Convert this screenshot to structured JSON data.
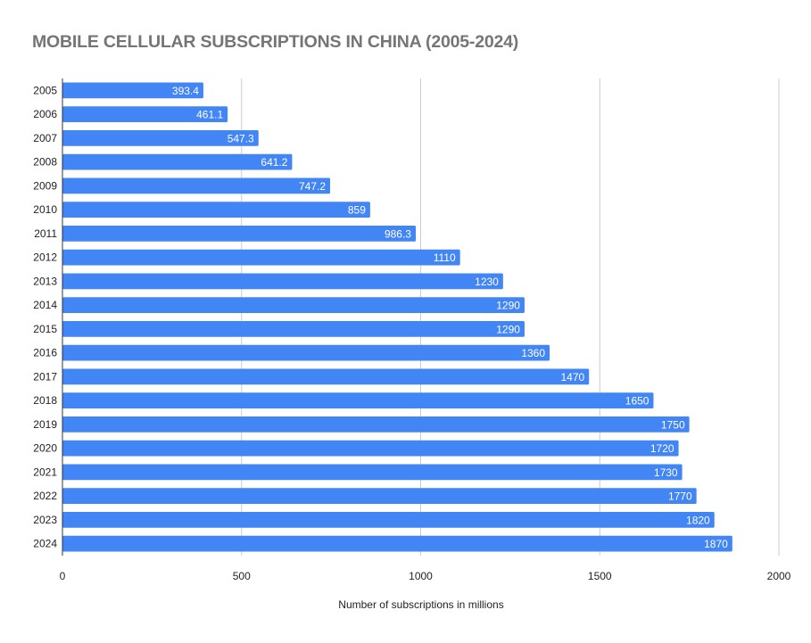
{
  "chart_data": {
    "type": "bar",
    "orientation": "horizontal",
    "title": "MOBILE CELLULAR SUBSCRIPTIONS IN CHINA (2005-2024)",
    "xlabel": "Number of subscriptions in millions",
    "ylabel": "",
    "categories": [
      "2005",
      "2006",
      "2007",
      "2008",
      "2009",
      "2010",
      "2011",
      "2012",
      "2013",
      "2014",
      "2015",
      "2016",
      "2017",
      "2018",
      "2019",
      "2020",
      "2021",
      "2022",
      "2023",
      "2024"
    ],
    "values": [
      393.4,
      461.1,
      547.3,
      641.2,
      747.2,
      859,
      986.3,
      1110,
      1230,
      1290,
      1290,
      1360,
      1470,
      1650,
      1750,
      1720,
      1730,
      1770,
      1820,
      1870
    ],
    "value_labels": [
      "393.4",
      "461.1",
      "547.3",
      "641.2",
      "747.2",
      "859",
      "986.3",
      "1110",
      "1230",
      "1290",
      "1290",
      "1360",
      "1470",
      "1650",
      "1750",
      "1720",
      "1730",
      "1770",
      "1820",
      "1870"
    ],
    "xlim": [
      0,
      2000
    ],
    "xticks": [
      0,
      500,
      1000,
      1500,
      2000
    ],
    "xtick_labels": [
      "0",
      "500",
      "1000",
      "1500",
      "2000"
    ],
    "grid": true,
    "legend": "none",
    "colors": {
      "bar": "#4285f4",
      "grid": "#cccccc",
      "axis": "#333333",
      "title": "#757575",
      "text": "#222222",
      "bar_label": "#ffffff"
    }
  }
}
